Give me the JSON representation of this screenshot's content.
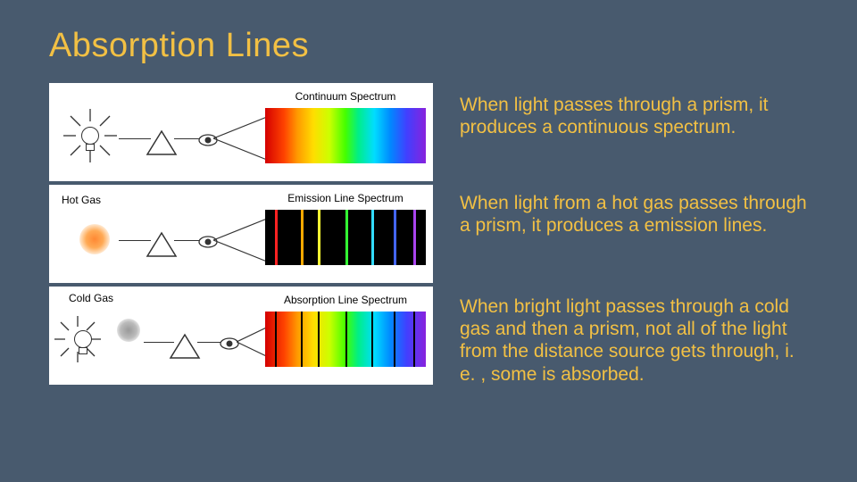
{
  "title": "Absorption Lines",
  "background_color": "#485a6e",
  "accent_color": "#f2c044",
  "panel_bg": "#ffffff",
  "panels": [
    {
      "spectrum_label": "Continuum Spectrum",
      "source_type": "bulb",
      "spectrum_type": "continuous"
    },
    {
      "spectrum_label": "Emission Line Spectrum",
      "source_type": "hot_gas",
      "source_label": "Hot Gas",
      "spectrum_type": "emission",
      "emission_lines": [
        {
          "pos_pct": 6,
          "color": "#ff2222"
        },
        {
          "pos_pct": 22,
          "color": "#ffaa00"
        },
        {
          "pos_pct": 33,
          "color": "#ffff33"
        },
        {
          "pos_pct": 50,
          "color": "#33ff33"
        },
        {
          "pos_pct": 66,
          "color": "#33ddff"
        },
        {
          "pos_pct": 80,
          "color": "#4466ff"
        },
        {
          "pos_pct": 92,
          "color": "#aa44ee"
        }
      ]
    },
    {
      "spectrum_label": "Absorption Line Spectrum",
      "source_type": "bulb_cold",
      "source_label": "Cold Gas",
      "spectrum_type": "absorption",
      "absorption_lines_pct": [
        6,
        22,
        33,
        50,
        66,
        80,
        92
      ]
    }
  ],
  "descriptions": [
    "When light passes through a prism, it produces a continuous spectrum.",
    "When light from a hot gas passes through a prism, it produces a emission lines.",
    "When bright light passes through a cold gas and then a prism, not all of the light from the distance source gets through, i. e. , some is absorbed."
  ],
  "spectrum_gradient_stops": [
    {
      "pct": 0,
      "color": "#d40000"
    },
    {
      "pct": 12,
      "color": "#ff4400"
    },
    {
      "pct": 20,
      "color": "#ff9900"
    },
    {
      "pct": 30,
      "color": "#ffdd00"
    },
    {
      "pct": 40,
      "color": "#ccff00"
    },
    {
      "pct": 50,
      "color": "#44ff00"
    },
    {
      "pct": 58,
      "color": "#00ee88"
    },
    {
      "pct": 68,
      "color": "#00ddff"
    },
    {
      "pct": 78,
      "color": "#0088ff"
    },
    {
      "pct": 88,
      "color": "#4040ff"
    },
    {
      "pct": 100,
      "color": "#8822dd"
    }
  ]
}
